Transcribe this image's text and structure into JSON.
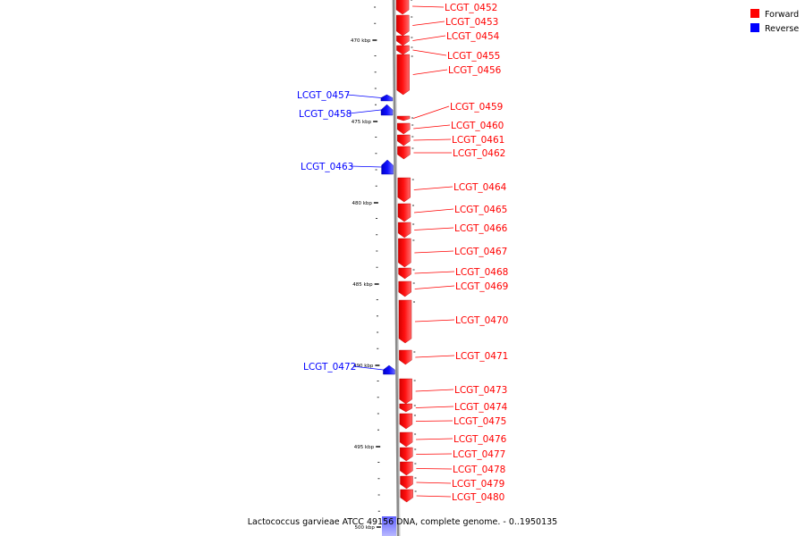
{
  "caption": "Lactococcus garvieae ATCC 49156 DNA, complete genome. - 0..1950135",
  "legend": [
    {
      "label": "Forward",
      "color": "#ff0000"
    },
    {
      "label": "Reverse",
      "color": "#0000ff"
    }
  ],
  "colors": {
    "forward": "#ff0000",
    "reverse": "#0000ff",
    "backbone": "#8a8a8a"
  },
  "ticks": [
    {
      "label": "470 kbp"
    },
    {
      "label": "475 kbp"
    },
    {
      "label": "480 kbp"
    },
    {
      "label": "485 kbp"
    },
    {
      "label": "490 kbp"
    },
    {
      "label": "495 kbp"
    },
    {
      "label": "500 kbp"
    }
  ],
  "genes": [
    {
      "label": "LCGT_0452",
      "strand": "forward"
    },
    {
      "label": "LCGT_0453",
      "strand": "forward"
    },
    {
      "label": "LCGT_0454",
      "strand": "forward"
    },
    {
      "label": "LCGT_0455",
      "strand": "forward"
    },
    {
      "label": "LCGT_0456",
      "strand": "forward"
    },
    {
      "label": "LCGT_0457",
      "strand": "reverse"
    },
    {
      "label": "LCGT_0458",
      "strand": "reverse"
    },
    {
      "label": "LCGT_0459",
      "strand": "forward"
    },
    {
      "label": "LCGT_0460",
      "strand": "forward"
    },
    {
      "label": "LCGT_0461",
      "strand": "forward"
    },
    {
      "label": "LCGT_0462",
      "strand": "forward"
    },
    {
      "label": "LCGT_0463",
      "strand": "reverse"
    },
    {
      "label": "LCGT_0464",
      "strand": "forward"
    },
    {
      "label": "LCGT_0465",
      "strand": "forward"
    },
    {
      "label": "LCGT_0466",
      "strand": "forward"
    },
    {
      "label": "LCGT_0467",
      "strand": "forward"
    },
    {
      "label": "LCGT_0468",
      "strand": "forward"
    },
    {
      "label": "LCGT_0469",
      "strand": "forward"
    },
    {
      "label": "LCGT_0470",
      "strand": "forward"
    },
    {
      "label": "LCGT_0471",
      "strand": "forward"
    },
    {
      "label": "LCGT_0472",
      "strand": "reverse"
    },
    {
      "label": "LCGT_0473",
      "strand": "forward"
    },
    {
      "label": "LCGT_0474",
      "strand": "forward"
    },
    {
      "label": "LCGT_0475",
      "strand": "forward"
    },
    {
      "label": "LCGT_0476",
      "strand": "forward"
    },
    {
      "label": "LCGT_0477",
      "strand": "forward"
    },
    {
      "label": "LCGT_0478",
      "strand": "forward"
    },
    {
      "label": "LCGT_0479",
      "strand": "forward"
    },
    {
      "label": "LCGT_0480",
      "strand": "forward"
    }
  ]
}
